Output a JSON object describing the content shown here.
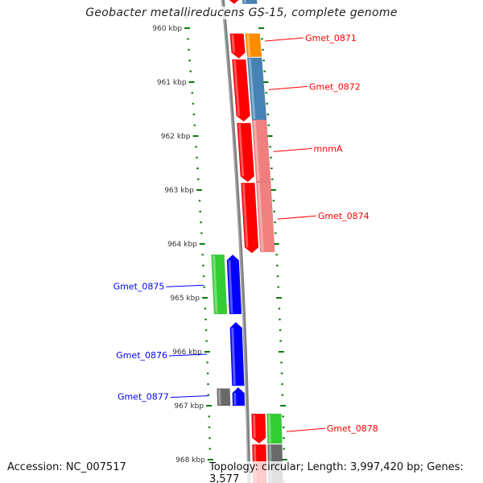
{
  "title": "Geobacter metallireducens GS-15, complete genome",
  "footer": {
    "accession": "Accession: NC_007517",
    "topology": "Topology: circular; Length: 3,997,420 bp; Genes: 3,577"
  },
  "colors": {
    "tick": "#0a7a0a",
    "backbone": "#808080",
    "forward_label": "#ff0000",
    "reverse_label": "#0000ff"
  },
  "ticks": {
    "major": [
      "960 kbp",
      "961 kbp",
      "962 kbp",
      "963 kbp",
      "964 kbp",
      "965 kbp",
      "966 kbp",
      "967 kbp",
      "968 kbp"
    ],
    "first_kbp": 960,
    "minor_per_kbp": 5
  },
  "genes": [
    {
      "track": "fwd",
      "start": 959.3,
      "end": 959.55,
      "color": "#ff0000",
      "arrow": true
    },
    {
      "track": "fwd_cds",
      "start": 959.3,
      "end": 959.55,
      "color": "#4682b4",
      "arrow": false
    },
    {
      "track": "fwd",
      "start": 960.1,
      "end": 960.56,
      "color": "#ff0000",
      "arrow": true
    },
    {
      "track": "fwd_cds",
      "start": 960.1,
      "end": 960.53,
      "color": "#ff8c00",
      "arrow": false
    },
    {
      "track": "fwd",
      "start": 960.58,
      "end": 961.73,
      "color": "#ff0000",
      "arrow": true
    },
    {
      "track": "fwd_cds",
      "start": 960.55,
      "end": 961.7,
      "color": "#4682b4",
      "arrow": false
    },
    {
      "track": "fwd",
      "start": 961.76,
      "end": 962.85,
      "color": "#ff0000",
      "arrow": true
    },
    {
      "track": "fwd_cds",
      "start": 961.7,
      "end": 962.85,
      "color": "#f08080",
      "arrow": false
    },
    {
      "track": "fwd",
      "start": 962.87,
      "end": 964.17,
      "color": "#ff0000",
      "arrow": true
    },
    {
      "track": "fwd_cds",
      "start": 962.85,
      "end": 964.15,
      "color": "#f08080",
      "arrow": false
    },
    {
      "track": "rev_cds",
      "start": 964.2,
      "end": 965.3,
      "color": "#32cd32",
      "arrow": false
    },
    {
      "track": "rev",
      "start": 964.2,
      "end": 965.3,
      "color": "#0000ff",
      "arrow": true
    },
    {
      "track": "rev",
      "start": 965.45,
      "end": 966.63,
      "color": "#0000ff",
      "arrow": true
    },
    {
      "track": "rev_cds",
      "start": 966.68,
      "end": 967.0,
      "color": "#696969",
      "arrow": false
    },
    {
      "track": "rev",
      "start": 966.66,
      "end": 967.0,
      "color": "#0000ff",
      "arrow": true
    },
    {
      "track": "fwd",
      "start": 967.15,
      "end": 967.7,
      "color": "#ff0000",
      "arrow": true
    },
    {
      "track": "fwd_cds",
      "start": 967.15,
      "end": 967.7,
      "color": "#32cd32",
      "arrow": false
    },
    {
      "track": "fwd",
      "start": 967.72,
      "end": 968.6,
      "color": "#ff0000",
      "arrow": false
    },
    {
      "track": "fwd_cds",
      "start": 967.72,
      "end": 968.6,
      "color": "#696969",
      "arrow": false
    }
  ],
  "labels": [
    {
      "text": "Gmet_0871",
      "side": "right",
      "kbp": 960.18
    },
    {
      "text": "Gmet_0872",
      "side": "right",
      "kbp": 961.08
    },
    {
      "text": "mnmA",
      "side": "right",
      "kbp": 962.23
    },
    {
      "text": "Gmet_0874",
      "side": "right",
      "kbp": 963.48
    },
    {
      "text": "Gmet_0875",
      "side": "left",
      "kbp": 964.78
    },
    {
      "text": "Gmet_0876",
      "side": "left",
      "kbp": 966.06
    },
    {
      "text": "Gmet_0877",
      "side": "left",
      "kbp": 966.83
    },
    {
      "text": "Gmet_0878",
      "side": "right",
      "kbp": 967.42
    }
  ]
}
